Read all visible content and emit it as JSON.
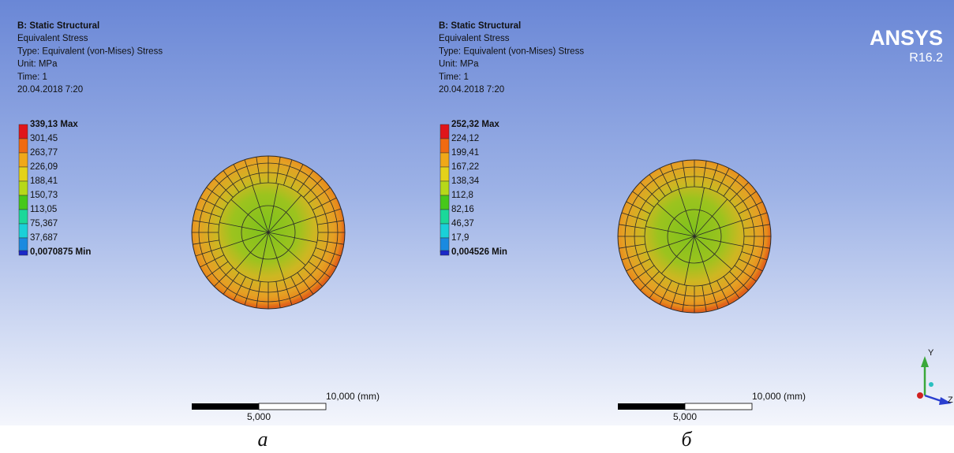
{
  "logo": {
    "brand": "ANSYS",
    "version": "R16.2"
  },
  "triad": {
    "y_label": "Y",
    "z_label": "Z"
  },
  "panels": [
    {
      "title": "B: Static Structural",
      "result": "Equivalent Stress",
      "type": "Type: Equivalent (von-Mises) Stress",
      "unit": "Unit: MPa",
      "time": "Time: 1",
      "date": "20.04.2018 7:20",
      "legend": [
        "339,13 Max",
        "301,45",
        "263,77",
        "226,09",
        "188,41",
        "150,73",
        "113,05",
        "75,367",
        "37,687",
        "0,0070875 Min"
      ],
      "scale_full": "10,000 (mm)",
      "scale_half": "5,000",
      "caption": "а"
    },
    {
      "title": "B: Static Structural",
      "result": "Equivalent Stress",
      "type": "Type: Equivalent (von-Mises) Stress",
      "unit": "Unit: MPa",
      "time": "Time: 1",
      "date": "20.04.2018 7:20",
      "legend": [
        "252,32 Max",
        "224,12",
        "199,41",
        "167,22",
        "138,34",
        "112,8",
        "82,16",
        "46,37",
        "17,9",
        "0,004526 Min"
      ],
      "scale_full": "10,000 (mm)",
      "scale_half": "5,000",
      "caption": "б"
    }
  ]
}
